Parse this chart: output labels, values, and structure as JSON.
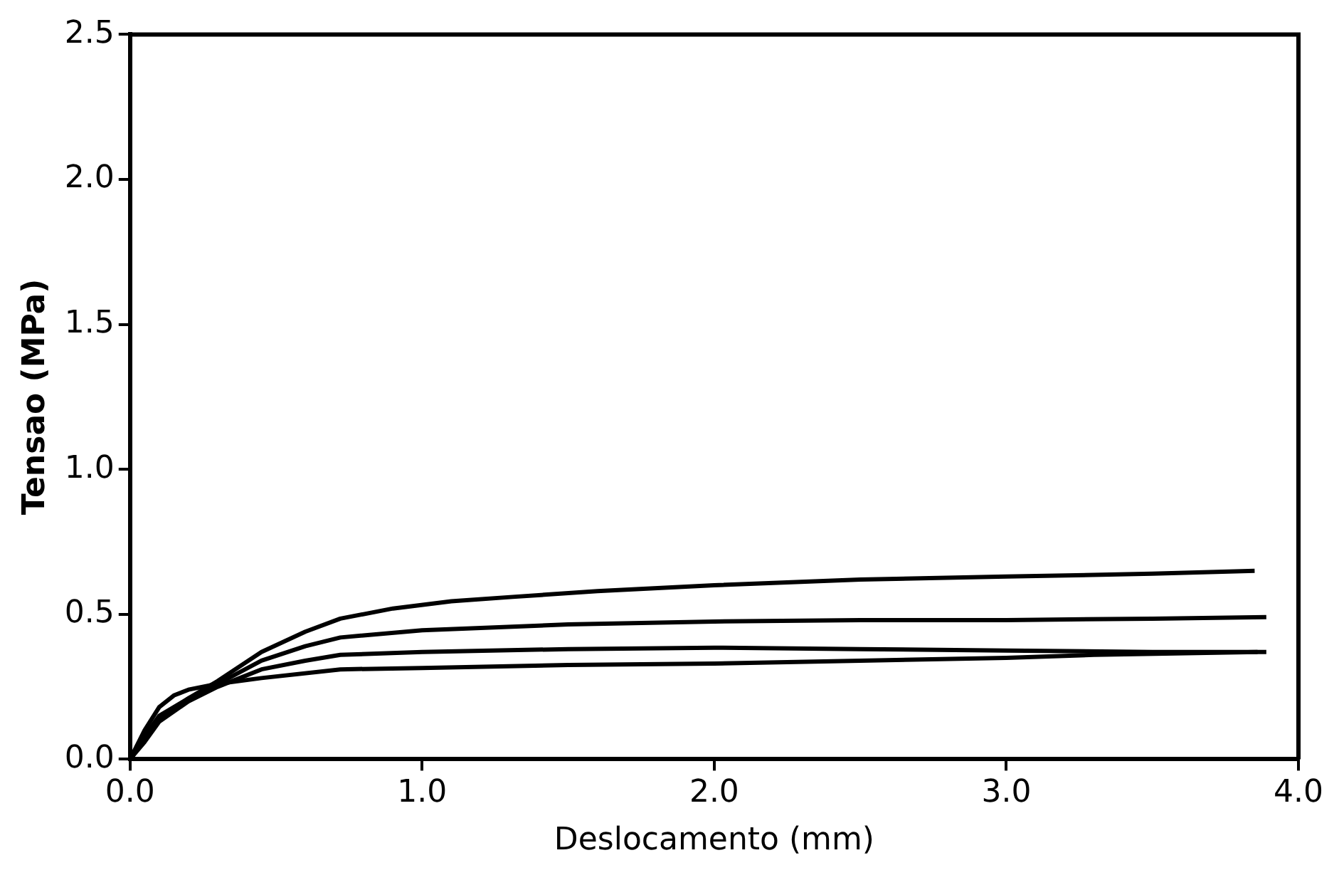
{
  "chart_data": {
    "type": "line",
    "xlabel": "Deslocamento (mm)",
    "ylabel": "Tensao (MPa)",
    "xlim": [
      0,
      4
    ],
    "ylim": [
      0,
      2.5
    ],
    "xticks": [
      {
        "value": 0,
        "label": "0.0"
      },
      {
        "value": 1,
        "label": "1.0"
      },
      {
        "value": 2,
        "label": "2.0"
      },
      {
        "value": 3,
        "label": "3.0"
      },
      {
        "value": 4,
        "label": "4.0"
      }
    ],
    "yticks": [
      {
        "value": 0,
        "label": "0.0"
      },
      {
        "value": 0.5,
        "label": "0.5"
      },
      {
        "value": 1,
        "label": "1.0"
      },
      {
        "value": 1.5,
        "label": "1.5"
      },
      {
        "value": 2,
        "label": "2.0"
      },
      {
        "value": 2.5,
        "label": "2.5"
      }
    ],
    "grid": false,
    "legend": false,
    "marker": "none",
    "line_style": "solid",
    "series": [
      {
        "color": "#000000",
        "x": [
          0,
          0.05,
          0.1,
          0.2,
          0.3,
          0.45,
          0.6,
          0.72,
          0.9,
          1.1,
          1.31,
          1.6,
          2.0,
          2.5,
          3.0,
          3.5,
          3.85
        ],
        "values": [
          0,
          0.08,
          0.15,
          0.21,
          0.27,
          0.37,
          0.44,
          0.485,
          0.52,
          0.545,
          0.56,
          0.58,
          0.6,
          0.62,
          0.63,
          0.64,
          0.65
        ]
      },
      {
        "color": "#000000",
        "x": [
          0,
          0.05,
          0.1,
          0.2,
          0.3,
          0.45,
          0.6,
          0.72,
          1.0,
          1.5,
          2.0,
          2.5,
          3.0,
          3.5,
          3.89
        ],
        "values": [
          0,
          0.07,
          0.14,
          0.21,
          0.26,
          0.34,
          0.39,
          0.42,
          0.445,
          0.465,
          0.475,
          0.48,
          0.48,
          0.485,
          0.49
        ]
      },
      {
        "color": "#000000",
        "x": [
          0,
          0.05,
          0.1,
          0.2,
          0.3,
          0.45,
          0.6,
          0.72,
          1.0,
          1.5,
          2.0,
          2.5,
          3.0,
          3.5,
          3.89
        ],
        "values": [
          0,
          0.06,
          0.13,
          0.2,
          0.25,
          0.31,
          0.34,
          0.36,
          0.37,
          0.38,
          0.385,
          0.38,
          0.375,
          0.37,
          0.37
        ]
      },
      {
        "color": "#000000",
        "x": [
          0,
          0.05,
          0.1,
          0.15,
          0.2,
          0.3,
          0.45,
          0.72,
          1.0,
          1.5,
          2.0,
          2.5,
          3.0,
          3.3,
          3.86
        ],
        "values": [
          0,
          0.1,
          0.18,
          0.22,
          0.24,
          0.26,
          0.28,
          0.31,
          0.315,
          0.325,
          0.33,
          0.34,
          0.35,
          0.36,
          0.37
        ]
      }
    ]
  }
}
